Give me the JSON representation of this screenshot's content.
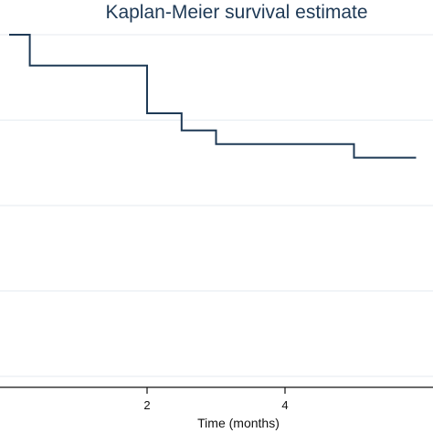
{
  "chart_data": {
    "type": "line",
    "subtype": "step",
    "title": "Kaplan-Meier survival estimate",
    "xlabel": "Time (months)",
    "ylabel": "",
    "xlim": [
      -0.3,
      5.9
    ],
    "ylim": [
      0.0,
      1.0
    ],
    "x_ticks": [
      2,
      4
    ],
    "grid": true,
    "series": [
      {
        "color": "#1f3a56",
        "x": [
          0.0,
          0.3,
          0.3,
          2.0,
          2.0,
          2.5,
          2.5,
          3.0,
          3.0,
          5.0,
          5.0,
          5.9
        ],
        "y": [
          1.0,
          1.0,
          0.91,
          0.91,
          0.77,
          0.77,
          0.72,
          0.72,
          0.68,
          0.68,
          0.64,
          0.64
        ]
      }
    ]
  }
}
